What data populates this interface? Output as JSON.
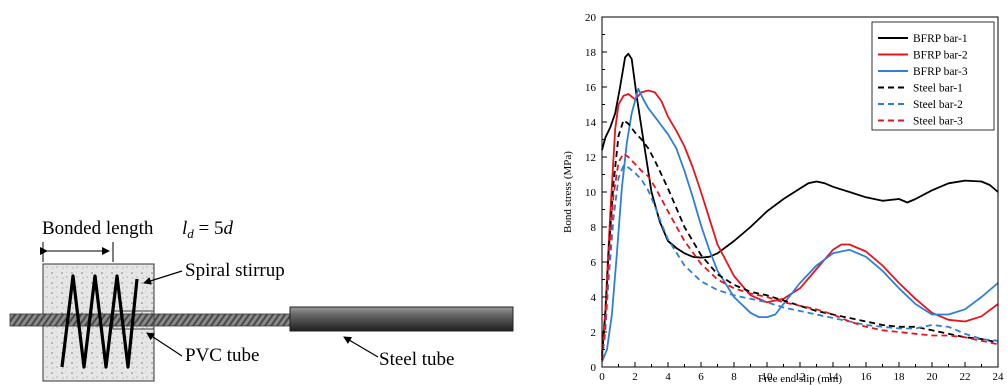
{
  "diagram": {
    "bonded_length_label": "Bonded length",
    "formula": "l_d = 5d",
    "spiral_label": "Spiral stirrup",
    "pvc_label": "PVC tube",
    "steel_tube_label": "Steel tube"
  },
  "chart_data": {
    "type": "line",
    "xlabel": "Free end slip (mm)",
    "ylabel": "Bond stress (MPa)",
    "xlim": [
      0,
      24
    ],
    "ylim": [
      0,
      20
    ],
    "xticks": [
      0,
      2,
      4,
      6,
      8,
      10,
      12,
      14,
      16,
      18,
      20,
      22,
      24
    ],
    "yticks": [
      0,
      2,
      4,
      6,
      8,
      10,
      12,
      14,
      16,
      18,
      20
    ],
    "grid": false,
    "legend": "top-right",
    "series": [
      {
        "name": "BFRP bar-1",
        "color": "#000000",
        "dash": "solid",
        "x": [
          0,
          0.2,
          0.5,
          0.8,
          1.1,
          1.4,
          1.6,
          1.8,
          2.1,
          2.5,
          3,
          3.5,
          4,
          4.5,
          5,
          5.5,
          6,
          6.5,
          7,
          8,
          9,
          10,
          11,
          12,
          12.5,
          13,
          13.5,
          14,
          15,
          16,
          17,
          18,
          18.5,
          19,
          20,
          21,
          22,
          23,
          23.5,
          24
        ],
        "y": [
          12.4,
          13.1,
          13.7,
          14.5,
          16.0,
          17.7,
          17.9,
          17.6,
          15.5,
          13.0,
          10.0,
          8.3,
          7.2,
          6.8,
          6.5,
          6.3,
          6.25,
          6.3,
          6.5,
          7.2,
          8.0,
          8.9,
          9.6,
          10.2,
          10.5,
          10.6,
          10.5,
          10.3,
          10.0,
          9.7,
          9.5,
          9.6,
          9.4,
          9.6,
          10.1,
          10.5,
          10.65,
          10.6,
          10.4,
          10.0
        ]
      },
      {
        "name": "BFRP bar-2",
        "color": "#e8141c",
        "dash": "solid",
        "x": [
          0,
          0.2,
          0.5,
          0.8,
          1.0,
          1.3,
          1.6,
          2.0,
          2.4,
          2.8,
          3.2,
          3.6,
          4,
          4.5,
          5,
          5.5,
          6,
          6.5,
          7,
          8,
          9,
          10,
          11,
          12,
          13,
          14,
          14.5,
          15,
          16,
          17,
          18,
          19,
          20,
          21,
          22,
          23,
          24
        ],
        "y": [
          0.8,
          3.2,
          8.8,
          13.6,
          15.0,
          15.5,
          15.6,
          15.3,
          15.7,
          15.8,
          15.7,
          15.2,
          14.3,
          13.5,
          12.6,
          11.4,
          10.0,
          8.5,
          7.0,
          5.2,
          4.1,
          3.7,
          3.9,
          4.5,
          5.6,
          6.7,
          7.0,
          7.0,
          6.6,
          5.8,
          4.8,
          3.9,
          3.1,
          2.7,
          2.6,
          2.9,
          3.6
        ]
      },
      {
        "name": "BFRP bar-3",
        "color": "#2e7fd8",
        "dash": "solid",
        "x": [
          0,
          0.3,
          0.6,
          0.9,
          1.2,
          1.5,
          1.8,
          2.0,
          2.2,
          2.5,
          2.8,
          3.2,
          3.6,
          4,
          4.5,
          5,
          5.5,
          6,
          6.5,
          7,
          8,
          9,
          9.5,
          10,
          10.5,
          11,
          12,
          13,
          14,
          15,
          16,
          17,
          18,
          19,
          20,
          21,
          22,
          23,
          24
        ],
        "y": [
          0.3,
          1.0,
          3.0,
          6.5,
          10.2,
          12.8,
          14.5,
          15.2,
          15.9,
          15.3,
          14.8,
          14.3,
          13.8,
          13.3,
          12.5,
          11.2,
          9.7,
          8.1,
          6.7,
          5.5,
          4.0,
          3.1,
          2.85,
          2.85,
          3.0,
          3.6,
          4.8,
          5.8,
          6.5,
          6.7,
          6.3,
          5.5,
          4.5,
          3.6,
          3.0,
          3.0,
          3.3,
          4.0,
          4.8
        ]
      },
      {
        "name": "Steel bar-1",
        "color": "#000000",
        "dash": "dashed",
        "x": [
          0,
          0.2,
          0.4,
          0.7,
          1.0,
          1.3,
          1.6,
          2.0,
          2.4,
          2.8,
          3.2,
          3.6,
          4,
          5,
          6,
          7,
          8,
          9,
          10,
          11,
          12,
          13,
          14,
          15,
          16,
          17,
          18,
          19,
          20,
          21,
          22,
          23,
          24
        ],
        "y": [
          0.6,
          3.0,
          6.5,
          10.5,
          13.2,
          14.1,
          13.9,
          13.4,
          13.0,
          12.5,
          11.8,
          11.0,
          10.2,
          8.0,
          6.4,
          5.3,
          4.7,
          4.3,
          4.1,
          3.8,
          3.5,
          3.2,
          3.0,
          2.8,
          2.6,
          2.4,
          2.3,
          2.3,
          2.1,
          1.9,
          1.7,
          1.6,
          1.4
        ]
      },
      {
        "name": "Steel bar-2",
        "color": "#2e7fd8",
        "dash": "dashed",
        "x": [
          0,
          0.2,
          0.4,
          0.7,
          1.0,
          1.3,
          1.6,
          2.0,
          2.4,
          2.8,
          3.2,
          3.6,
          4,
          5,
          6,
          7,
          8,
          9,
          10,
          11,
          12,
          13,
          14,
          15,
          16,
          17,
          18,
          19,
          20,
          21,
          22,
          23,
          24
        ],
        "y": [
          0.4,
          2.0,
          5.0,
          8.5,
          10.8,
          11.5,
          11.4,
          11.1,
          10.7,
          10.1,
          9.2,
          8.2,
          7.3,
          5.8,
          4.9,
          4.4,
          4.1,
          3.9,
          3.7,
          3.4,
          3.2,
          3.0,
          2.8,
          2.6,
          2.4,
          2.3,
          2.2,
          2.2,
          2.4,
          2.3,
          1.9,
          1.6,
          1.5
        ]
      },
      {
        "name": "Steel bar-3",
        "color": "#e8141c",
        "dash": "dashed",
        "x": [
          0,
          0.2,
          0.4,
          0.7,
          1.0,
          1.3,
          1.6,
          2.0,
          2.4,
          2.8,
          3.2,
          3.6,
          4,
          5,
          6,
          7,
          8,
          9,
          10,
          11,
          12,
          13,
          14,
          15,
          16,
          17,
          18,
          19,
          20,
          21,
          22,
          23,
          24
        ],
        "y": [
          0.4,
          2.5,
          6.0,
          9.8,
          11.7,
          12.2,
          12.0,
          11.6,
          11.2,
          10.9,
          10.3,
          9.6,
          8.9,
          7.2,
          5.9,
          5.0,
          4.5,
          4.2,
          4.0,
          3.7,
          3.5,
          3.3,
          3.0,
          2.6,
          2.3,
          2.1,
          2.0,
          1.9,
          1.8,
          1.8,
          1.7,
          1.5,
          1.3
        ]
      }
    ]
  }
}
